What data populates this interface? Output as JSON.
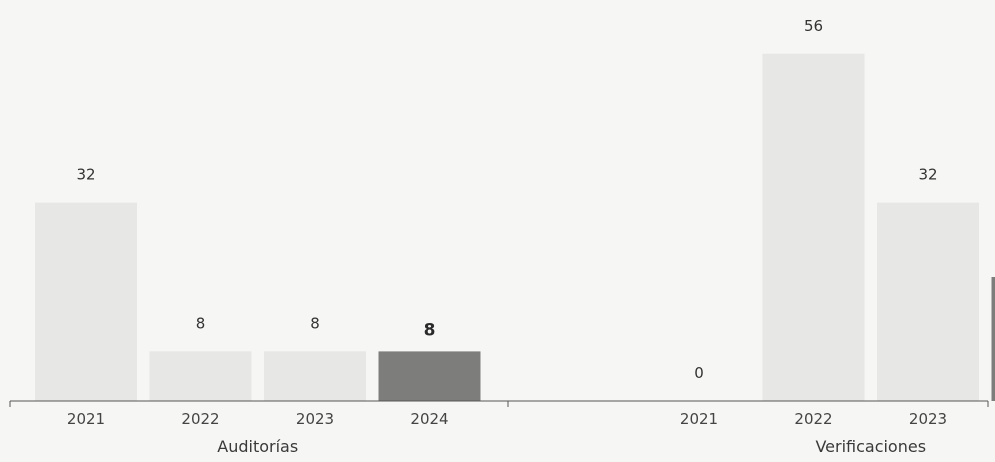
{
  "chart_data": {
    "type": "bar",
    "categories": [
      "2021",
      "2022",
      "2023",
      "2024"
    ],
    "groups": [
      {
        "name": "Auditorías",
        "values": [
          32,
          8,
          8,
          8
        ]
      },
      {
        "name": "Verificaciones",
        "values": [
          0,
          56,
          32,
          20
        ]
      }
    ],
    "highlight_category": "2024",
    "colors": {
      "bar": "#e7e7e5",
      "highlight": "#7d7d7b",
      "axis": "#555555"
    },
    "grid": false,
    "legend": "none"
  }
}
